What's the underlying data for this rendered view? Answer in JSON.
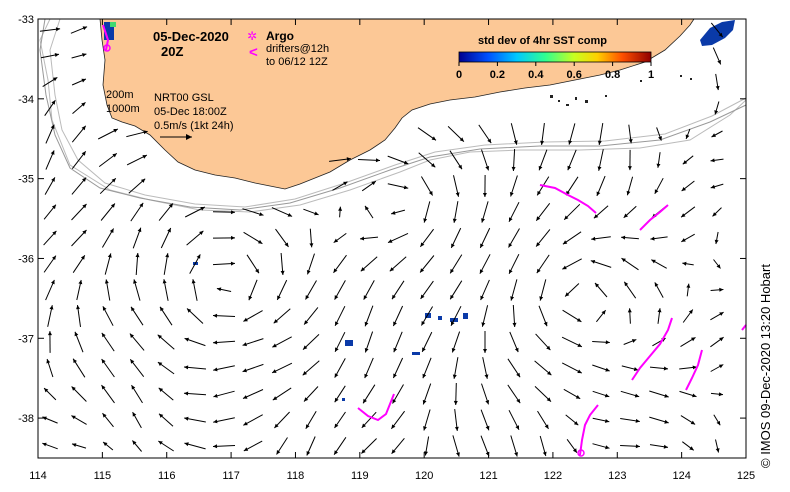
{
  "header": {
    "date": "05-Dec-2020",
    "time": "20Z"
  },
  "legend_drifters": {
    "argo_label": "Argo",
    "drifter_line1": "drifters@12h",
    "drifter_line2": "to 06/12 12Z",
    "argo_symbol": "✲",
    "drifter_symbol": "<"
  },
  "isobaths": {
    "label_200": "200m",
    "label_1000": "1000m"
  },
  "current_info": {
    "product": "NRT00 GSL",
    "valid": "05-Dec 18:00Z",
    "scale": "0.5m/s (1kt 24h)"
  },
  "colorbar": {
    "title": "std dev of 4hr SST comp",
    "ticks": [
      "0",
      "0.2",
      "0.4",
      "0.6",
      "0.8",
      "1"
    ]
  },
  "credit": "© IMOS 09-Dec-2020 13:20 Hobart",
  "axes": {
    "lon_ticks": [
      "114",
      "115",
      "116",
      "117",
      "118",
      "119",
      "120",
      "121",
      "122",
      "123",
      "124",
      "125"
    ],
    "lat_ticks": [
      "-33",
      "-34",
      "-35",
      "-36",
      "-37",
      "-38"
    ]
  },
  "colors": {
    "land": "#fcc896",
    "drifter": "#ff00ff",
    "sst_patch": "#0a3aa8",
    "isobath": "#aaaaaa"
  },
  "map_extent": {
    "lon": [
      114,
      125
    ],
    "lat": [
      -38.5,
      -33
    ]
  }
}
